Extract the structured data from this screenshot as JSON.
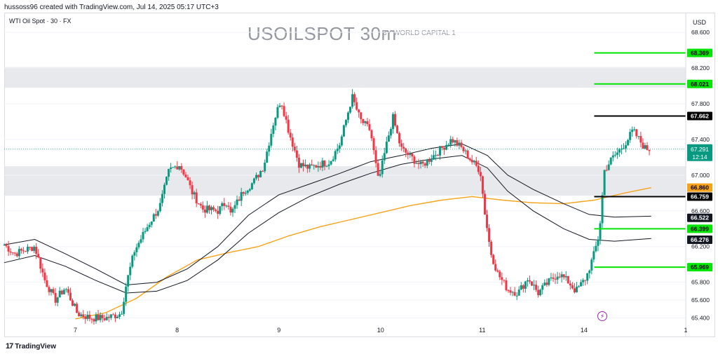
{
  "header": {
    "credit": "hussoss96 created with TradingView.com, Jul 14, 2025 05:17 UTC+3",
    "symbol_info": "WTI Oil Spot · 30 · FX",
    "title": "USOILSPOT 30m",
    "subtitle": "BY WORLD CAPITAL 1",
    "currency": "USD"
  },
  "footer": {
    "brand": "TradingView",
    "brand_logo": "17"
  },
  "icons": {
    "alert": "lightning-icon"
  },
  "colors": {
    "up": "#089981",
    "down": "#f23645",
    "ma200": "#f7a21b",
    "band": "#131722",
    "zone": "#e8e9ed",
    "level_green": "#00e600",
    "level_black": "#000000",
    "grid": "#f0f3fa"
  },
  "chart_data": {
    "type": "candlestick",
    "x_ticks": [
      {
        "label": "7",
        "t": 0.7
      },
      {
        "label": "8",
        "t": 1.7
      },
      {
        "label": "9",
        "t": 2.7
      },
      {
        "label": "10",
        "t": 3.7
      },
      {
        "label": "11",
        "t": 4.7
      },
      {
        "label": "14",
        "t": 5.7
      },
      {
        "label": "1",
        "t": 6.7
      }
    ],
    "xlim": [
      0,
      6.7
    ],
    "y_ticks": [
      65.4,
      65.6,
      65.8,
      66.2,
      66.6,
      67.0,
      67.4,
      67.8,
      68.2,
      68.6
    ],
    "ylim": [
      65.35,
      68.82
    ],
    "current_price": "67.291",
    "countdown": "12:14",
    "zones": [
      {
        "from": 67.98,
        "to": 68.21
      },
      {
        "from": 66.77,
        "to": 67.1
      }
    ],
    "levels": [
      {
        "value": "68.369",
        "style": "green",
        "t0": 5.8
      },
      {
        "value": "68.021",
        "style": "green",
        "t0": 5.8
      },
      {
        "value": "67.662",
        "style": "black",
        "t0": 5.8
      },
      {
        "value": "66.759",
        "style": "black",
        "t0": 5.8
      },
      {
        "value": "66.399",
        "style": "green",
        "t0": 5.8
      },
      {
        "value": "65.969",
        "style": "green",
        "t0": 5.8
      }
    ],
    "line_tags": [
      {
        "value": "66.860",
        "style": "ma"
      },
      {
        "value": "66.522",
        "style": "band"
      },
      {
        "value": "66.276",
        "style": "band"
      }
    ],
    "anchors": [
      [
        0.0,
        66.22
      ],
      [
        0.1,
        66.12
      ],
      [
        0.3,
        66.2
      ],
      [
        0.4,
        65.82
      ],
      [
        0.5,
        65.6
      ],
      [
        0.6,
        65.74
      ],
      [
        0.72,
        65.45
      ],
      [
        0.85,
        65.4
      ],
      [
        1.0,
        65.4
      ],
      [
        1.15,
        65.45
      ],
      [
        1.2,
        65.78
      ],
      [
        1.28,
        66.15
      ],
      [
        1.42,
        66.45
      ],
      [
        1.53,
        66.65
      ],
      [
        1.62,
        67.05
      ],
      [
        1.72,
        67.12
      ],
      [
        1.78,
        67.0
      ],
      [
        1.85,
        66.8
      ],
      [
        1.95,
        66.62
      ],
      [
        2.1,
        66.6
      ],
      [
        2.2,
        66.72
      ],
      [
        2.22,
        66.55
      ],
      [
        2.35,
        66.82
      ],
      [
        2.45,
        66.92
      ],
      [
        2.55,
        67.1
      ],
      [
        2.65,
        67.6
      ],
      [
        2.72,
        67.85
      ],
      [
        2.8,
        67.48
      ],
      [
        2.9,
        67.12
      ],
      [
        3.0,
        67.08
      ],
      [
        3.1,
        67.12
      ],
      [
        3.2,
        67.15
      ],
      [
        3.3,
        67.35
      ],
      [
        3.42,
        67.88
      ],
      [
        3.5,
        67.62
      ],
      [
        3.6,
        67.5
      ],
      [
        3.68,
        66.92
      ],
      [
        3.75,
        67.3
      ],
      [
        3.82,
        67.65
      ],
      [
        3.9,
        67.3
      ],
      [
        4.0,
        67.2
      ],
      [
        4.1,
        67.1
      ],
      [
        4.2,
        67.2
      ],
      [
        4.3,
        67.3
      ],
      [
        4.4,
        67.4
      ],
      [
        4.5,
        67.3
      ],
      [
        4.6,
        67.15
      ],
      [
        4.68,
        67.05
      ],
      [
        4.72,
        66.62
      ],
      [
        4.78,
        66.15
      ],
      [
        4.85,
        65.9
      ],
      [
        4.95,
        65.72
      ],
      [
        5.05,
        65.68
      ],
      [
        5.15,
        65.85
      ],
      [
        5.25,
        65.68
      ],
      [
        5.35,
        65.8
      ],
      [
        5.45,
        65.9
      ],
      [
        5.55,
        65.8
      ],
      [
        5.62,
        65.7
      ],
      [
        5.72,
        65.85
      ],
      [
        5.8,
        66.12
      ],
      [
        5.85,
        66.35
      ],
      [
        5.9,
        67.05
      ],
      [
        5.97,
        67.18
      ],
      [
        6.05,
        67.28
      ],
      [
        6.12,
        67.38
      ],
      [
        6.18,
        67.5
      ],
      [
        6.24,
        67.4
      ],
      [
        6.3,
        67.3
      ],
      [
        6.36,
        67.29
      ]
    ],
    "series": [
      {
        "name": "",
        "type": "ma",
        "points": [
          [
            0.7,
            65.39
          ],
          [
            1.0,
            65.46
          ],
          [
            1.3,
            65.62
          ],
          [
            1.6,
            65.86
          ],
          [
            1.9,
            66.05
          ],
          [
            2.2,
            66.13
          ],
          [
            2.5,
            66.2
          ],
          [
            2.8,
            66.32
          ],
          [
            3.1,
            66.42
          ],
          [
            3.4,
            66.5
          ],
          [
            3.7,
            66.58
          ],
          [
            4.0,
            66.66
          ],
          [
            4.3,
            66.72
          ],
          [
            4.6,
            66.76
          ],
          [
            4.9,
            66.72
          ],
          [
            5.2,
            66.69
          ],
          [
            5.5,
            66.68
          ],
          [
            5.8,
            66.72
          ],
          [
            6.1,
            66.8
          ],
          [
            6.36,
            66.86
          ]
        ]
      },
      {
        "name": "",
        "type": "band",
        "points": [
          [
            0.0,
            66.22
          ],
          [
            0.3,
            66.28
          ],
          [
            0.6,
            66.12
          ],
          [
            0.9,
            65.95
          ],
          [
            1.2,
            65.77
          ],
          [
            1.5,
            65.8
          ],
          [
            1.8,
            65.95
          ],
          [
            2.1,
            66.2
          ],
          [
            2.4,
            66.55
          ],
          [
            2.7,
            66.78
          ],
          [
            3.0,
            66.9
          ],
          [
            3.3,
            67.02
          ],
          [
            3.6,
            67.15
          ],
          [
            3.9,
            67.22
          ],
          [
            4.2,
            67.3
          ],
          [
            4.5,
            67.35
          ],
          [
            4.75,
            67.22
          ],
          [
            4.95,
            67.0
          ],
          [
            5.2,
            66.84
          ],
          [
            5.5,
            66.68
          ],
          [
            5.75,
            66.56
          ],
          [
            6.0,
            66.53
          ],
          [
            6.36,
            66.54
          ]
        ]
      },
      {
        "name": "",
        "type": "band",
        "points": [
          [
            0.0,
            66.02
          ],
          [
            0.3,
            66.1
          ],
          [
            0.6,
            65.98
          ],
          [
            0.9,
            65.82
          ],
          [
            1.2,
            65.68
          ],
          [
            1.5,
            65.7
          ],
          [
            1.8,
            65.82
          ],
          [
            2.1,
            66.05
          ],
          [
            2.4,
            66.35
          ],
          [
            2.7,
            66.58
          ],
          [
            3.0,
            66.76
          ],
          [
            3.3,
            66.9
          ],
          [
            3.6,
            67.02
          ],
          [
            3.9,
            67.12
          ],
          [
            4.2,
            67.18
          ],
          [
            4.5,
            67.22
          ],
          [
            4.75,
            67.08
          ],
          [
            4.95,
            66.82
          ],
          [
            5.2,
            66.6
          ],
          [
            5.5,
            66.4
          ],
          [
            5.75,
            66.28
          ],
          [
            6.0,
            66.26
          ],
          [
            6.36,
            66.29
          ]
        ]
      }
    ]
  }
}
